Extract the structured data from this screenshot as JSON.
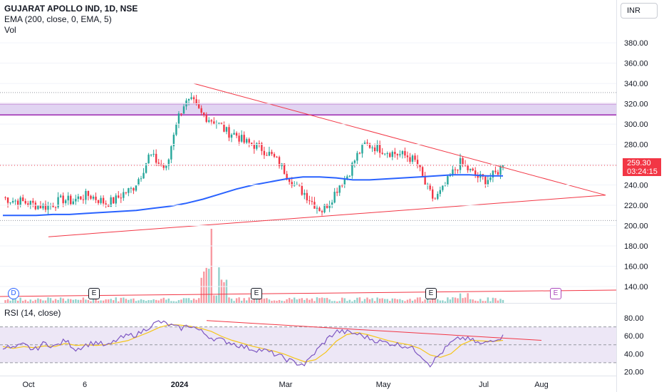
{
  "legend": {
    "title": "GUJARAT APOLLO IND, 1D, NSE",
    "indicator": "EMA (200, close, 0, EMA, 5)",
    "volume": "Vol"
  },
  "currency": "INR",
  "price_badge": {
    "price": "259.30",
    "countdown": "03:24:15"
  },
  "rsi_legend": "RSI (14, close)",
  "events": {
    "dividend": "D",
    "earnings": "E"
  },
  "colors": {
    "up": "#26a69a",
    "down": "#f23645",
    "ema": "#2962ff",
    "trendline": "#f23645",
    "zone_fill": "#e1d4f2",
    "zone_border": "#9c27b0",
    "rsi_line": "#7e57c2",
    "rsi_ma": "#f5c518",
    "rsi_band": "#ede7f6"
  },
  "chart_data": [
    {
      "type": "candlestick",
      "title": "GUJARAT APOLLO IND, 1D, NSE",
      "y_ticks": [
        "380.00",
        "360.00",
        "340.00",
        "320.00",
        "300.00",
        "280.00",
        "260.00",
        "240.00",
        "220.00",
        "200.00",
        "180.00",
        "160.00",
        "140.00"
      ],
      "ylim": [
        133,
        392
      ],
      "x_ticks": [
        "Oct",
        "6",
        "2024",
        "Mar",
        "May",
        "Jul",
        "Aug"
      ],
      "last_price": 259.3,
      "closes_sampled": [
        228,
        225,
        224,
        222,
        220,
        219,
        222,
        226,
        224,
        228,
        230,
        226,
        222,
        225,
        232,
        236,
        250,
        270,
        262,
        255,
        300,
        320,
        322,
        310,
        305,
        300,
        292,
        290,
        282,
        280,
        276,
        270,
        262,
        250,
        238,
        232,
        222,
        215,
        225,
        240,
        250,
        268,
        280,
        278,
        275,
        272,
        270,
        268,
        262,
        240,
        225,
        235,
        250,
        262,
        255,
        248,
        245,
        250,
        259
      ],
      "ema": {
        "name": "EMA (200, close, 0, EMA, 5)",
        "values_sampled": [
          210,
          210,
          210,
          211,
          211,
          212,
          213,
          214,
          215,
          217,
          219,
          222,
          226,
          231,
          236,
          240,
          243,
          246,
          248,
          248,
          247,
          245,
          245,
          246,
          247,
          248,
          249,
          250,
          250,
          249,
          249
        ]
      },
      "resistance_zone": [
        309,
        320
      ],
      "volume_visible": true
    },
    {
      "type": "line",
      "title": "RSI (14, close)",
      "y_ticks": [
        "80.00",
        "60.00",
        "40.00",
        "20.00"
      ],
      "ylim": [
        18,
        84
      ],
      "bands": [
        30,
        50,
        70
      ],
      "values_sampled": [
        48,
        46,
        50,
        44,
        52,
        48,
        55,
        45,
        50,
        53,
        48,
        56,
        60,
        62,
        70,
        76,
        72,
        68,
        72,
        65,
        58,
        55,
        52,
        48,
        45,
        44,
        40,
        35,
        30,
        28,
        42,
        55,
        65,
        64,
        62,
        58,
        54,
        52,
        50,
        48,
        40,
        28,
        40,
        52,
        58,
        55,
        50,
        56,
        59
      ]
    }
  ]
}
